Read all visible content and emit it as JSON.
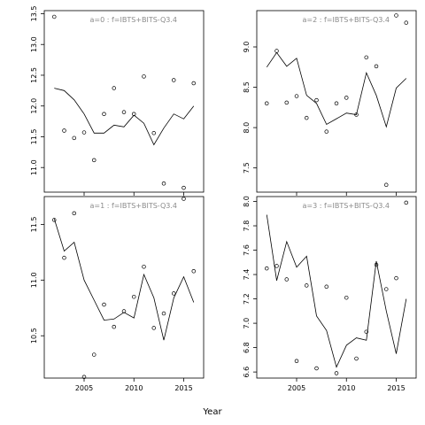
{
  "figure": {
    "xlabel": "Year"
  },
  "chart_data": [
    {
      "type": "line",
      "title": "a=0  :  f=IBTS+BITS-Q3.4",
      "xlim": [
        2001,
        2017
      ],
      "ylim": [
        10.6,
        13.55
      ],
      "yticks": [
        11.0,
        11.5,
        12.0,
        12.5,
        13.0,
        13.5
      ],
      "ytick_labels": [
        "11.0",
        "11.5",
        "12.0",
        "12.5",
        "13.0",
        "13.5"
      ],
      "xticks": [
        2005,
        2010,
        2015
      ],
      "xtick_labels": [],
      "line_x": [
        2002,
        2003,
        2004,
        2005,
        2006,
        2007,
        2008,
        2009,
        2010,
        2011,
        2012,
        2013,
        2014,
        2015,
        2016
      ],
      "line_y": [
        12.29,
        12.25,
        12.1,
        11.87,
        11.56,
        11.56,
        11.69,
        11.66,
        11.85,
        11.72,
        11.37,
        11.64,
        11.87,
        11.79,
        12.0
      ],
      "points_x": [
        2002,
        2003,
        2004,
        2005,
        2006,
        2007,
        2008,
        2009,
        2010,
        2011,
        2012,
        2013,
        2014,
        2015,
        2016
      ],
      "points_y": [
        13.45,
        11.6,
        11.48,
        11.57,
        11.12,
        11.87,
        12.29,
        11.9,
        11.87,
        12.48,
        11.56,
        10.74,
        12.42,
        10.67,
        12.37
      ]
    },
    {
      "type": "line",
      "title": "a=2  :  f=IBTS+BITS-Q3.4",
      "xlim": [
        2001,
        2017
      ],
      "ylim": [
        7.2,
        9.45
      ],
      "yticks": [
        7.5,
        8.0,
        8.5,
        9.0
      ],
      "ytick_labels": [
        "7.5",
        "8.0",
        "8.5",
        "9.0"
      ],
      "xticks": [
        2005,
        2010,
        2015
      ],
      "xtick_labels": [],
      "line_x": [
        2002,
        2003,
        2004,
        2005,
        2006,
        2007,
        2008,
        2009,
        2010,
        2011,
        2012,
        2013,
        2014,
        2015,
        2016
      ],
      "line_y": [
        8.75,
        8.93,
        8.76,
        8.86,
        8.4,
        8.3,
        8.04,
        8.11,
        8.18,
        8.16,
        8.68,
        8.4,
        8.01,
        8.49,
        8.61
      ],
      "points_x": [
        2002,
        2003,
        2004,
        2005,
        2006,
        2007,
        2008,
        2009,
        2010,
        2011,
        2012,
        2013,
        2014,
        2015,
        2016
      ],
      "points_y": [
        8.3,
        8.95,
        8.31,
        8.39,
        8.12,
        8.34,
        7.95,
        8.3,
        8.37,
        8.16,
        8.87,
        8.76,
        7.29,
        9.39,
        9.3
      ]
    },
    {
      "type": "line",
      "title": "a=1  :  f=IBTS+BITS-Q3.4",
      "xlim": [
        2001,
        2017
      ],
      "ylim": [
        10.12,
        11.75
      ],
      "yticks": [
        10.5,
        11.0,
        11.5
      ],
      "ytick_labels": [
        "10.5",
        "11.0",
        "11.5"
      ],
      "xticks": [
        2005,
        2010,
        2015
      ],
      "xtick_labels": [
        "2005",
        "2010",
        "2015"
      ],
      "line_x": [
        2002,
        2003,
        2004,
        2005,
        2006,
        2007,
        2008,
        2009,
        2010,
        2011,
        2012,
        2013,
        2014,
        2015,
        2016
      ],
      "line_y": [
        11.55,
        11.26,
        11.34,
        11.0,
        10.82,
        10.64,
        10.65,
        10.71,
        10.66,
        11.05,
        10.84,
        10.46,
        10.84,
        11.03,
        10.8
      ],
      "points_x": [
        2002,
        2003,
        2004,
        2005,
        2006,
        2007,
        2008,
        2009,
        2010,
        2011,
        2012,
        2013,
        2014,
        2015,
        2016
      ],
      "points_y": [
        11.54,
        11.2,
        11.6,
        10.13,
        10.33,
        10.78,
        10.58,
        10.72,
        10.85,
        11.12,
        10.57,
        10.7,
        10.88,
        11.73,
        11.08
      ]
    },
    {
      "type": "line",
      "title": "a=3  :  f=IBTS+BITS-Q3.4",
      "xlim": [
        2001,
        2017
      ],
      "ylim": [
        6.55,
        8.04
      ],
      "yticks": [
        6.6,
        6.8,
        7.0,
        7.2,
        7.4,
        7.6,
        7.8,
        8.0
      ],
      "ytick_labels": [
        "6.6",
        "6.8",
        "7.0",
        "7.2",
        "7.4",
        "7.6",
        "7.8",
        "8.0"
      ],
      "xticks": [
        2005,
        2010,
        2015
      ],
      "xtick_labels": [
        "2005",
        "2010",
        "2015"
      ],
      "line_x": [
        2002,
        2003,
        2004,
        2005,
        2006,
        2007,
        2008,
        2009,
        2010,
        2011,
        2012,
        2013,
        2014,
        2015,
        2016
      ],
      "line_y": [
        7.89,
        7.35,
        7.67,
        7.46,
        7.55,
        7.06,
        6.94,
        6.64,
        6.82,
        6.88,
        6.86,
        7.51,
        7.1,
        6.75,
        7.2
      ],
      "points_x": [
        2002,
        2003,
        2004,
        2005,
        2006,
        2007,
        2008,
        2009,
        2010,
        2011,
        2012,
        2013,
        2014,
        2015,
        2016
      ],
      "points_y": [
        7.45,
        7.47,
        7.36,
        6.69,
        7.31,
        6.63,
        7.3,
        6.59,
        7.21,
        6.71,
        6.93,
        7.48,
        7.28,
        7.37,
        7.99
      ]
    }
  ]
}
